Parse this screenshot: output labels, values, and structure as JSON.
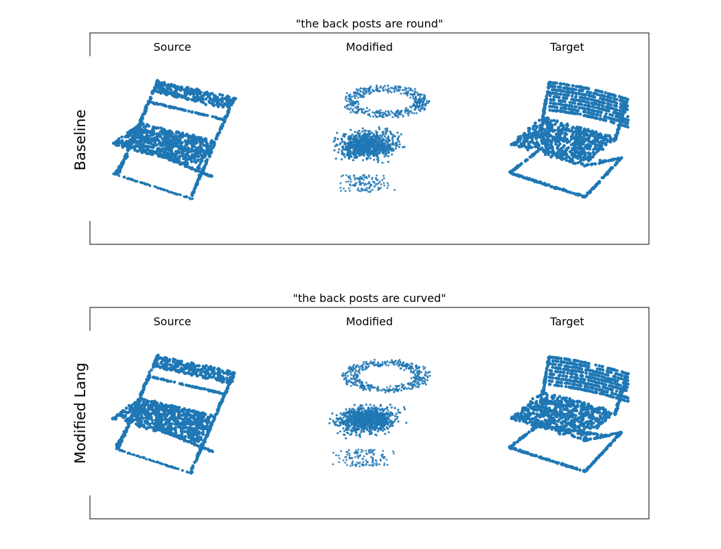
{
  "figure": {
    "panels": [
      {
        "title": "\"the back posts are round\"",
        "row_label": "Baseline",
        "columns": [
          "Source",
          "Modified",
          "Target"
        ]
      },
      {
        "title": "\"the back posts are curved\"",
        "row_label": "Modified Lang",
        "columns": [
          "Source",
          "Modified",
          "Target"
        ]
      }
    ],
    "point_color": "#1f77b4"
  }
}
